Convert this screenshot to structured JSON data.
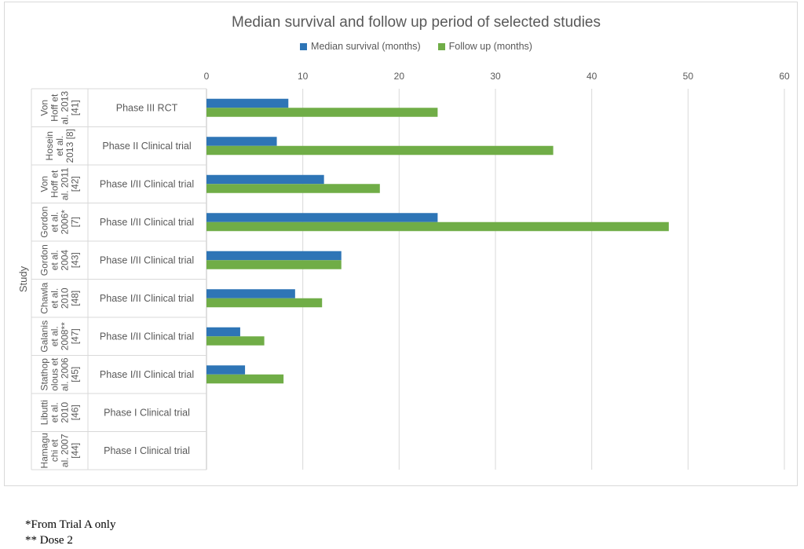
{
  "chart_data": {
    "type": "bar",
    "orientation": "horizontal",
    "title": "Median survival and follow up period of selected studies",
    "ylabel": "Study",
    "xlabel": "",
    "xlim": [
      0,
      60
    ],
    "x_ticks": [
      0,
      10,
      20,
      30,
      40,
      50,
      60
    ],
    "grid": true,
    "legend_position": "top",
    "studies": [
      {
        "study": [
          "Von",
          "Hoff et",
          "al. 2013",
          "[41]"
        ],
        "phase": "Phase III RCT"
      },
      {
        "study": [
          "Hosein",
          "et al.",
          "2013 [8]"
        ],
        "phase": "Phase II Clinical trial"
      },
      {
        "study": [
          "Von",
          "Hoff et",
          "al. 2011",
          "[42]"
        ],
        "phase": "Phase I/II Clinical trial"
      },
      {
        "study": [
          "Gordon",
          "et al.",
          "2006*",
          "[7]"
        ],
        "phase": "Phase I/II Clinical trial"
      },
      {
        "study": [
          "Gordon",
          "et al.",
          "2004",
          "[43]"
        ],
        "phase": "Phase I/II Clinical trial"
      },
      {
        "study": [
          "Chawla",
          "et al.",
          "2010",
          "[48]"
        ],
        "phase": "Phase I/II Clinical trial"
      },
      {
        "study": [
          "Galanis",
          "et al.",
          "2008**",
          "[47]"
        ],
        "phase": "Phase I/II Clinical trial"
      },
      {
        "study": [
          "Stathop",
          "olous et",
          "al. 2006",
          "[45]"
        ],
        "phase": "Phase I/II Clinical trial"
      },
      {
        "study": [
          "Libutti",
          "et al.",
          "2010",
          "[46]"
        ],
        "phase": "Phase I Clinical trial"
      },
      {
        "study": [
          "Hamagu",
          "chi et",
          "al. 2007",
          "[44]"
        ],
        "phase": "Phase I Clinical trial"
      }
    ],
    "series": [
      {
        "name": "Median survival (months)",
        "color": "#2e75b6",
        "values": [
          8.5,
          7.3,
          12.2,
          24,
          14,
          9.2,
          3.5,
          4,
          null,
          null
        ]
      },
      {
        "name": "Follow up (months)",
        "color": "#70ad47",
        "values": [
          24,
          36,
          18,
          48,
          14,
          12,
          6,
          8,
          null,
          null
        ]
      }
    ]
  },
  "footnotes": [
    "*From Trial A only",
    "** Dose 2"
  ]
}
